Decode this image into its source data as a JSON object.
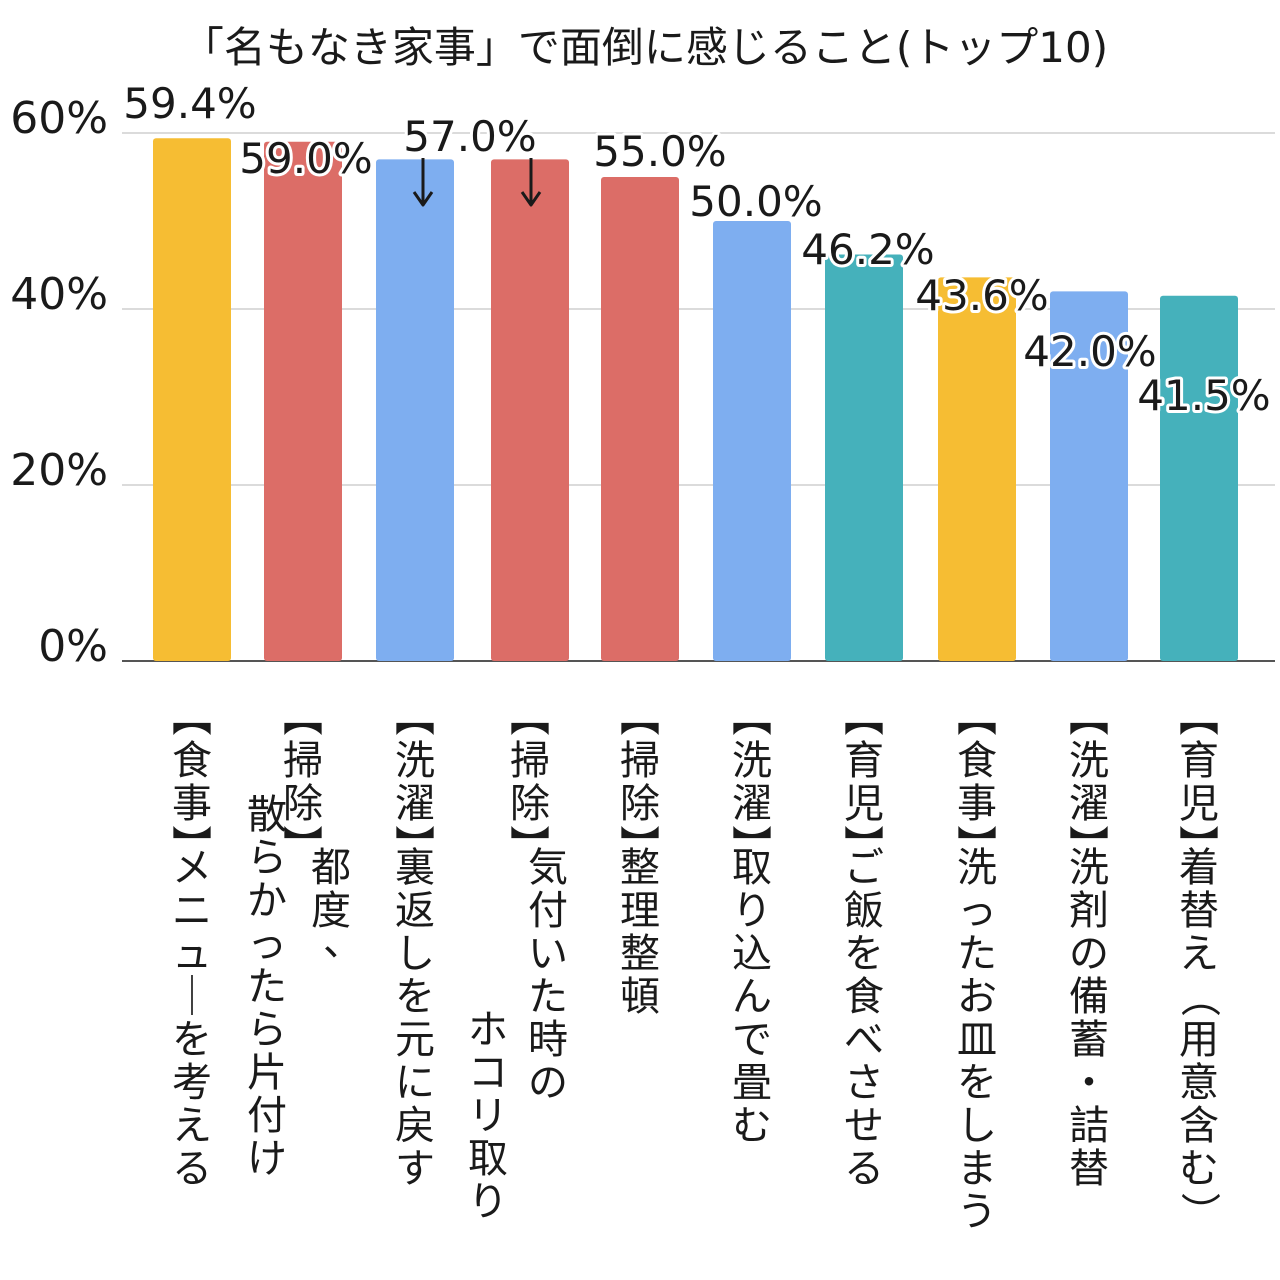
{
  "chart_data": {
    "type": "bar",
    "title": "「名もなき家事」で面倒に感じること(トップ10)",
    "xlabel": "",
    "ylabel": "",
    "ylim": [
      0,
      60
    ],
    "yticks": [
      0,
      20,
      40,
      60
    ],
    "ytick_labels": [
      "0%",
      "20%",
      "40%",
      "60%"
    ],
    "grid": true,
    "legend": "none",
    "categories": [
      {
        "group": "【食事】",
        "item": "メニューを考える"
      },
      {
        "group": "【掃除】",
        "item": "都度、散らかったら片付け"
      },
      {
        "group": "【洗濯】",
        "item": "裏返しを元に戻す"
      },
      {
        "group": "【掃除】",
        "item": "気付いた時のホコリ取り"
      },
      {
        "group": "【掃除】",
        "item": "整理整頓"
      },
      {
        "group": "【洗濯】",
        "item": "取り込んで畳む"
      },
      {
        "group": "【育児】",
        "item": "ご飯を食べさせる"
      },
      {
        "group": "【食事】",
        "item": "洗ったお皿をしまう"
      },
      {
        "group": "【洗濯】",
        "item": "洗剤の備蓄・詰替"
      },
      {
        "group": "【育児】",
        "item": "着替え（用意含む）"
      }
    ],
    "values": [
      59.4,
      59.0,
      57.0,
      57.0,
      55.0,
      50.0,
      46.2,
      43.6,
      42.0,
      41.5
    ],
    "value_labels": [
      "59.4%",
      "59.0%",
      "57.0%",
      "",
      "55.0%",
      "50.0%",
      "46.2%",
      "43.6%",
      "42.0%",
      "41.5%"
    ],
    "group_colors": {
      "【食事】": "#f6bd33",
      "【掃除】": "#dc6d67",
      "【洗濯】": "#7eaef0",
      "【育児】": "#45b1bb"
    }
  }
}
